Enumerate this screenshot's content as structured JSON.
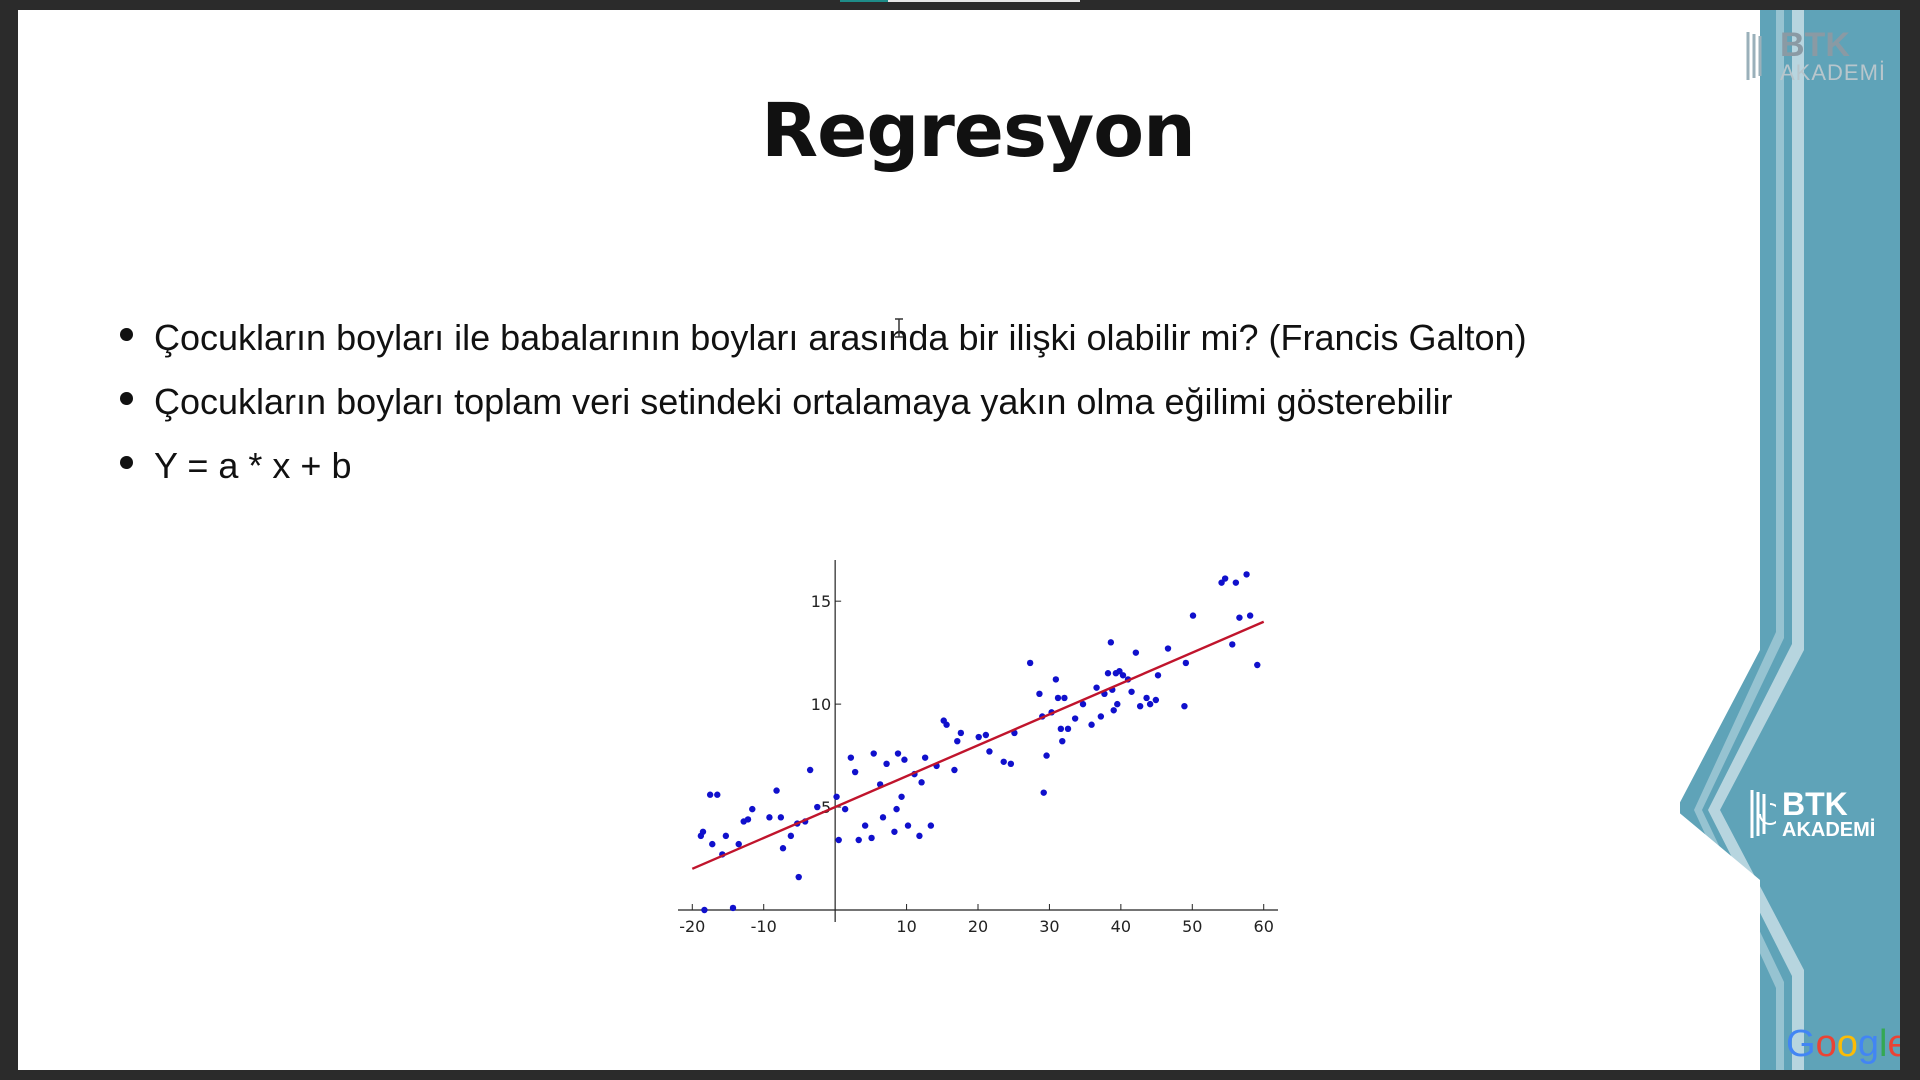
{
  "slide": {
    "title": "Regresyon",
    "bullets": [
      "Çocukların boyları ile babalarının boyları arasında bir ilişki olabilir mi? (Francis Galton)",
      "Çocukların boyları toplam veri setindeki ortalamaya yakın olma eğilimi gösterebilir",
      "Y = a * x + b"
    ]
  },
  "branding": {
    "top_logo_line1": "BTK",
    "top_logo_line2": "AKADEMİ",
    "side_logo_line1": "BTK",
    "side_logo_line2": "AKADEMİ",
    "google_letters": [
      "G",
      "o",
      "o",
      "g",
      "l",
      "e"
    ],
    "google_colors": [
      "#4285F4",
      "#EA4335",
      "#FBBC05",
      "#4285F4",
      "#34A853",
      "#EA4335"
    ],
    "panel_color": "#5fa3b8",
    "panel_dark": "#4a8ea6"
  },
  "chart_data": {
    "type": "scatter",
    "title": "",
    "xlabel": "",
    "ylabel": "",
    "xlim": [
      -22,
      62
    ],
    "ylim": [
      0,
      17
    ],
    "x_ticks": [
      -20,
      -10,
      10,
      20,
      30,
      40,
      50,
      60
    ],
    "x_tick_labels": [
      "-20",
      "-10",
      "10",
      "20",
      "30",
      "40",
      "50",
      "60"
    ],
    "y_ticks": [
      5,
      10,
      15
    ],
    "y_tick_labels": [
      "5",
      "10",
      "15"
    ],
    "grid": false,
    "point_color": "#1010cc",
    "line_color": "#c0142c",
    "points": [
      [
        -18.8,
        3.6
      ],
      [
        -18.5,
        3.8
      ],
      [
        -17.5,
        5.6
      ],
      [
        -16.5,
        5.6
      ],
      [
        -17.2,
        3.2
      ],
      [
        -15.8,
        2.7
      ],
      [
        -15.3,
        3.6
      ],
      [
        -13.5,
        3.2
      ],
      [
        -12.8,
        4.3
      ],
      [
        -12.2,
        4.4
      ],
      [
        -11.6,
        4.9
      ],
      [
        -9.2,
        4.5
      ],
      [
        -8.2,
        5.8
      ],
      [
        -7.3,
        3.0
      ],
      [
        -7.6,
        4.5
      ],
      [
        -6.2,
        3.6
      ],
      [
        -5.3,
        4.2
      ],
      [
        -5.1,
        1.6
      ],
      [
        -4.2,
        4.3
      ],
      [
        -3.5,
        6.8
      ],
      [
        -2.5,
        5.0
      ],
      [
        0.5,
        3.4
      ],
      [
        1.4,
        4.9
      ],
      [
        2.2,
        7.4
      ],
      [
        2.8,
        6.7
      ],
      [
        3.3,
        3.4
      ],
      [
        4.2,
        4.1
      ],
      [
        5.1,
        3.5
      ],
      [
        5.4,
        7.6
      ],
      [
        6.3,
        6.1
      ],
      [
        6.7,
        4.5
      ],
      [
        7.2,
        7.1
      ],
      [
        8.3,
        3.8
      ],
      [
        8.6,
        4.9
      ],
      [
        8.8,
        7.6
      ],
      [
        9.3,
        5.5
      ],
      [
        9.7,
        7.3
      ],
      [
        10.2,
        4.1
      ],
      [
        11.1,
        6.6
      ],
      [
        11.8,
        3.6
      ],
      [
        12.1,
        6.2
      ],
      [
        12.6,
        7.4
      ],
      [
        13.4,
        4.1
      ],
      [
        14.2,
        7.0
      ],
      [
        15.2,
        9.2
      ],
      [
        15.6,
        9.0
      ],
      [
        16.7,
        6.8
      ],
      [
        17.1,
        8.2
      ],
      [
        17.6,
        8.6
      ],
      [
        20.1,
        8.4
      ],
      [
        21.1,
        8.5
      ],
      [
        21.6,
        7.7
      ],
      [
        23.6,
        7.2
      ],
      [
        24.6,
        7.1
      ],
      [
        25.1,
        8.6
      ],
      [
        27.3,
        12.0
      ],
      [
        28.6,
        10.5
      ],
      [
        29.0,
        9.4
      ],
      [
        29.2,
        5.7
      ],
      [
        29.6,
        7.5
      ],
      [
        30.3,
        9.6
      ],
      [
        30.9,
        11.2
      ],
      [
        31.2,
        10.3
      ],
      [
        31.6,
        8.8
      ],
      [
        31.8,
        8.2
      ],
      [
        32.1,
        10.3
      ],
      [
        32.6,
        8.8
      ],
      [
        33.6,
        9.3
      ],
      [
        34.7,
        10.0
      ],
      [
        35.9,
        9.0
      ],
      [
        36.6,
        10.8
      ],
      [
        37.2,
        9.4
      ],
      [
        37.7,
        10.5
      ],
      [
        38.2,
        11.5
      ],
      [
        38.6,
        13.0
      ],
      [
        38.8,
        10.7
      ],
      [
        39.0,
        9.7
      ],
      [
        39.3,
        11.5
      ],
      [
        39.5,
        10.0
      ],
      [
        39.8,
        11.6
      ],
      [
        40.3,
        11.4
      ],
      [
        41.0,
        11.2
      ],
      [
        41.5,
        10.6
      ],
      [
        42.1,
        12.5
      ],
      [
        42.7,
        9.9
      ],
      [
        43.6,
        10.3
      ],
      [
        44.1,
        10.0
      ],
      [
        44.9,
        10.2
      ],
      [
        45.2,
        11.4
      ],
      [
        46.6,
        12.7
      ],
      [
        48.9,
        9.9
      ],
      [
        49.1,
        12.0
      ],
      [
        50.1,
        14.3
      ],
      [
        54.1,
        15.9
      ],
      [
        54.6,
        16.1
      ],
      [
        55.6,
        12.9
      ],
      [
        56.1,
        15.9
      ],
      [
        56.6,
        14.2
      ],
      [
        57.6,
        16.3
      ],
      [
        58.1,
        14.3
      ],
      [
        59.1,
        11.9
      ],
      [
        -14.3,
        0.1
      ],
      [
        -18.3,
        0.0
      ],
      [
        0.2,
        5.5
      ]
    ],
    "regression_line": [
      [
        -20,
        2.0
      ],
      [
        60,
        14.0
      ]
    ]
  }
}
